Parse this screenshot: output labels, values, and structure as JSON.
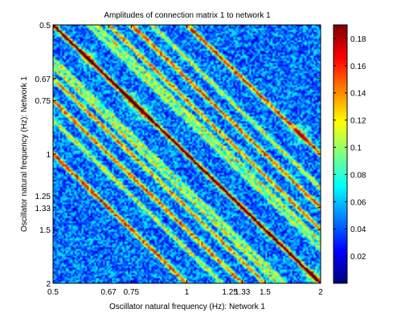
{
  "chart_data": {
    "type": "heatmap",
    "title": "Amplitudes of connection matrix 1 to network 1",
    "xlabel": "Oscillator natural frequency (Hz): Network 1",
    "ylabel": "Oscillator natural frequency (Hz): Network 1",
    "scale": "log",
    "xlim": [
      0.5,
      2
    ],
    "ylim": [
      0.5,
      2
    ],
    "y_direction": "reversed",
    "x_ticks": [
      {
        "value": 0.5,
        "label": "0.5"
      },
      {
        "value": 0.6667,
        "label": "0.67"
      },
      {
        "value": 0.75,
        "label": "0.75"
      },
      {
        "value": 1,
        "label": "1"
      },
      {
        "value": 1.25,
        "label": "1.25"
      },
      {
        "value": 1.3333,
        "label": "1.33"
      },
      {
        "value": 1.5,
        "label": "1.5"
      },
      {
        "value": 2,
        "label": "2"
      }
    ],
    "y_ticks": [
      {
        "value": 0.5,
        "label": "0.5"
      },
      {
        "value": 0.6667,
        "label": "0.67"
      },
      {
        "value": 0.75,
        "label": "0.75"
      },
      {
        "value": 1,
        "label": "1"
      },
      {
        "value": 1.25,
        "label": "1.25"
      },
      {
        "value": 1.3333,
        "label": "1.33"
      },
      {
        "value": 1.5,
        "label": "1.5"
      },
      {
        "value": 2,
        "label": "2"
      }
    ],
    "colorbar": {
      "colormap": "jet",
      "range": [
        0,
        0.19
      ],
      "ticks": [
        {
          "value": 0.02,
          "label": "0.02"
        },
        {
          "value": 0.04,
          "label": "0.04"
        },
        {
          "value": 0.06,
          "label": "0.06"
        },
        {
          "value": 0.08,
          "label": "0.08"
        },
        {
          "value": 0.1,
          "label": "0.1"
        },
        {
          "value": 0.12,
          "label": "0.12"
        },
        {
          "value": 0.14,
          "label": "0.14"
        },
        {
          "value": 0.16,
          "label": "0.16"
        },
        {
          "value": 0.18,
          "label": "0.18"
        }
      ]
    },
    "background_level": 0.045,
    "ridges": [
      {
        "ratio": 1,
        "peak": 0.16
      },
      {
        "ratio": 0.6667,
        "peak": 0.11
      },
      {
        "ratio": 1.5,
        "peak": 0.11
      },
      {
        "ratio": 0.75,
        "peak": 0.1
      },
      {
        "ratio": 1.3333,
        "peak": 0.1
      },
      {
        "ratio": 0.5,
        "peak": 0.12
      },
      {
        "ratio": 2,
        "peak": 0.12
      },
      {
        "ratio": 0.8,
        "peak": 0.075
      },
      {
        "ratio": 1.25,
        "peak": 0.075
      },
      {
        "ratio": 0.6,
        "peak": 0.075
      },
      {
        "ratio": 1.6667,
        "peak": 0.075
      },
      {
        "ratio": 0.8333,
        "peak": 0.065
      },
      {
        "ratio": 1.2,
        "peak": 0.065
      }
    ],
    "hotspots": [
      {
        "x": 0.75,
        "y": 0.75,
        "value": 0.15
      },
      {
        "x": 0.8,
        "y": 0.8,
        "value": 0.13
      },
      {
        "x": 1.92,
        "y": 1.92,
        "value": 0.16
      },
      {
        "x": 1.8,
        "y": 0.9,
        "value": 0.14
      },
      {
        "x": 0.6,
        "y": 0.6,
        "value": 0.13
      }
    ],
    "diagonal_line": {
      "ratio": 1,
      "color": "#000000"
    }
  }
}
